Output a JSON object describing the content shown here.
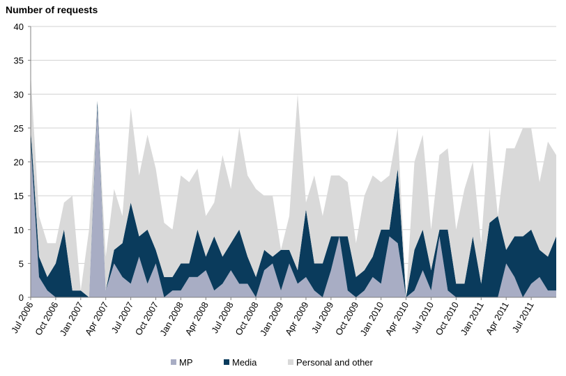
{
  "chart_data": {
    "type": "area",
    "stacked": true,
    "ylabel": "Number of requests",
    "xlabel": "",
    "ylim": [
      0,
      40
    ],
    "yticks": [
      "0",
      "5",
      "10",
      "15",
      "20",
      "25",
      "30",
      "35",
      "40"
    ],
    "grid": "horizontal",
    "legend_position": "bottom",
    "x_start": "Jul 2006",
    "x_end": "Oct 2011",
    "xtick_labels": [
      "Jul 2006",
      "Oct 2006",
      "Jan 2007",
      "Apr 2007",
      "Jul 2007",
      "Oct 2007",
      "Jan 2008",
      "Apr 2008",
      "Jul 2008",
      "Oct 2008",
      "Jan 2009",
      "Apr 2009",
      "Jul 2009",
      "Oct 2009",
      "Jan 2010",
      "Apr 2010",
      "Jul 2010",
      "Oct 2010",
      "Jan 2011",
      "Apr 2011",
      "Jul 2011"
    ],
    "series": [
      {
        "name": "MP",
        "color": "#a8adc4",
        "values": [
          23,
          3,
          1,
          0,
          0,
          0,
          0,
          0,
          28,
          1,
          5,
          3,
          2,
          6,
          2,
          5,
          0,
          1,
          1,
          3,
          3,
          4,
          1,
          2,
          4,
          2,
          2,
          0,
          4,
          5,
          1,
          5,
          2,
          3,
          1,
          0,
          4,
          9,
          1,
          0,
          1,
          3,
          2,
          9,
          8,
          0,
          1,
          4,
          1,
          9,
          1,
          0,
          0,
          0,
          0,
          0,
          0,
          5,
          3,
          0,
          2,
          3,
          1,
          1
        ]
      },
      {
        "name": "Media",
        "color": "#0a3b5c",
        "values": [
          2,
          3,
          2,
          5,
          10,
          1,
          1,
          0,
          1,
          0,
          2,
          5,
          12,
          3,
          8,
          2,
          3,
          2,
          4,
          2,
          7,
          2,
          8,
          4,
          4,
          8,
          4,
          3,
          3,
          1,
          6,
          2,
          2,
          10,
          4,
          5,
          5,
          0,
          8,
          3,
          3,
          3,
          8,
          1,
          11,
          0,
          6,
          6,
          3,
          1,
          9,
          2,
          2,
          9,
          2,
          11,
          12,
          2,
          6,
          9,
          8,
          4,
          5,
          8
        ]
      },
      {
        "name": "Personal and other",
        "color": "#d9d9d9",
        "values": [
          8,
          6,
          5,
          3,
          4,
          14,
          0,
          10,
          0,
          5,
          9,
          4,
          14,
          9,
          14,
          12,
          8,
          7,
          13,
          12,
          9,
          6,
          5,
          15,
          8,
          15,
          12,
          13,
          8,
          9,
          0,
          5,
          26,
          1,
          13,
          7,
          9,
          9,
          8,
          5,
          11,
          12,
          7,
          8,
          6,
          0,
          13,
          14,
          6,
          11,
          12,
          8,
          14,
          11,
          6,
          14,
          0,
          15,
          13,
          16,
          15,
          10,
          17,
          12
        ]
      }
    ]
  },
  "legend": {
    "items": [
      {
        "label": "MP",
        "color": "#a8adc4"
      },
      {
        "label": "Media",
        "color": "#0a3b5c"
      },
      {
        "label": "Personal and other",
        "color": "#d9d9d9"
      }
    ]
  }
}
